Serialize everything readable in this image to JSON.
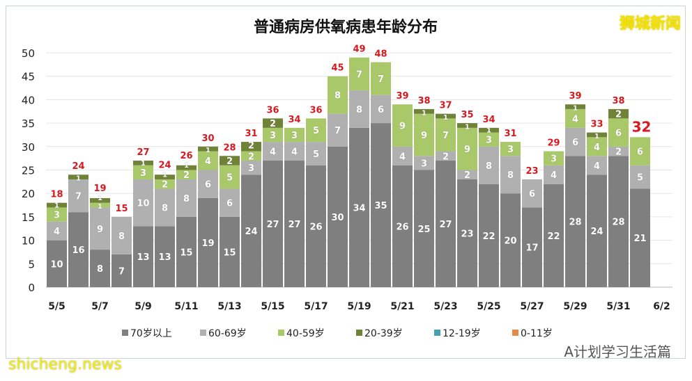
{
  "chart_data": {
    "type": "bar",
    "stacked": true,
    "title": "普通病房供氧病患年龄分布",
    "categories": [
      "5/5",
      "5/6",
      "5/7",
      "5/8",
      "5/9",
      "5/10",
      "5/11",
      "5/12",
      "5/13",
      "5/14",
      "5/15",
      "5/16",
      "5/17",
      "5/18",
      "5/19",
      "5/20",
      "5/21",
      "5/22",
      "5/23",
      "5/24",
      "5/25",
      "5/26",
      "5/27",
      "5/28",
      "5/29",
      "5/30",
      "5/31",
      "6/1"
    ],
    "tick_labels": [
      "5/5",
      "5/7",
      "5/9",
      "5/11",
      "5/13",
      "5/15",
      "5/17",
      "5/19",
      "5/21",
      "5/23",
      "5/25",
      "5/27",
      "5/29",
      "5/31",
      "6/2"
    ],
    "ylim": [
      0,
      50
    ],
    "yticks": [
      0,
      5,
      10,
      15,
      20,
      25,
      30,
      35,
      40,
      45,
      50
    ],
    "grid": true,
    "legend_position": "bottom",
    "series": [
      {
        "name": "70岁以上",
        "color": "#7f7f7f",
        "values": [
          10,
          16,
          8,
          7,
          13,
          13,
          15,
          19,
          15,
          24,
          27,
          27,
          26,
          30,
          34,
          35,
          26,
          25,
          27,
          23,
          22,
          20,
          17,
          22,
          28,
          24,
          28,
          21
        ]
      },
      {
        "name": "60-69岁",
        "color": "#b0b0b0",
        "values": [
          4,
          7,
          9,
          8,
          10,
          8,
          8,
          6,
          6,
          3,
          4,
          4,
          5,
          7,
          8,
          6,
          4,
          3,
          2,
          2,
          8,
          8,
          6,
          4,
          6,
          4,
          2,
          5
        ]
      },
      {
        "name": "40-59岁",
        "color": "#a9c86a",
        "values": [
          3,
          0,
          1,
          0,
          3,
          2,
          2,
          4,
          5,
          2,
          3,
          3,
          5,
          8,
          7,
          7,
          9,
          9,
          7,
          9,
          3,
          3,
          0,
          3,
          4,
          4,
          6,
          6
        ]
      },
      {
        "name": "20-39岁",
        "color": "#6f8238",
        "values": [
          1,
          1,
          1,
          0,
          1,
          1,
          1,
          1,
          2,
          2,
          2,
          0,
          0,
          0,
          0,
          0,
          0,
          1,
          1,
          1,
          1,
          0,
          0,
          0,
          1,
          1,
          2,
          0
        ]
      },
      {
        "name": "12-19岁",
        "color": "#4a9fae",
        "values": [
          0,
          0,
          0,
          0,
          0,
          0,
          0,
          0,
          0,
          0,
          0,
          0,
          0,
          0,
          0,
          0,
          0,
          0,
          0,
          0,
          0,
          0,
          0,
          0,
          0,
          0,
          0,
          0
        ]
      },
      {
        "name": "0-11岁",
        "color": "#e28a4a",
        "values": [
          0,
          0,
          0,
          0,
          0,
          0,
          0,
          0,
          0,
          0,
          0,
          0,
          0,
          0,
          0,
          0,
          0,
          0,
          0,
          0,
          0,
          0,
          0,
          0,
          0,
          0,
          0,
          0
        ]
      }
    ],
    "totals": [
      18,
      24,
      19,
      15,
      27,
      24,
      26,
      30,
      28,
      31,
      36,
      34,
      36,
      45,
      49,
      48,
      39,
      38,
      37,
      35,
      34,
      31,
      23,
      29,
      39,
      33,
      38,
      32
    ],
    "total_label_color": "#d71920"
  },
  "watermarks": {
    "top_right": "狮城新闻",
    "bottom_left": "shicheng.news",
    "bottom_right": "A计划学习生活篇"
  }
}
